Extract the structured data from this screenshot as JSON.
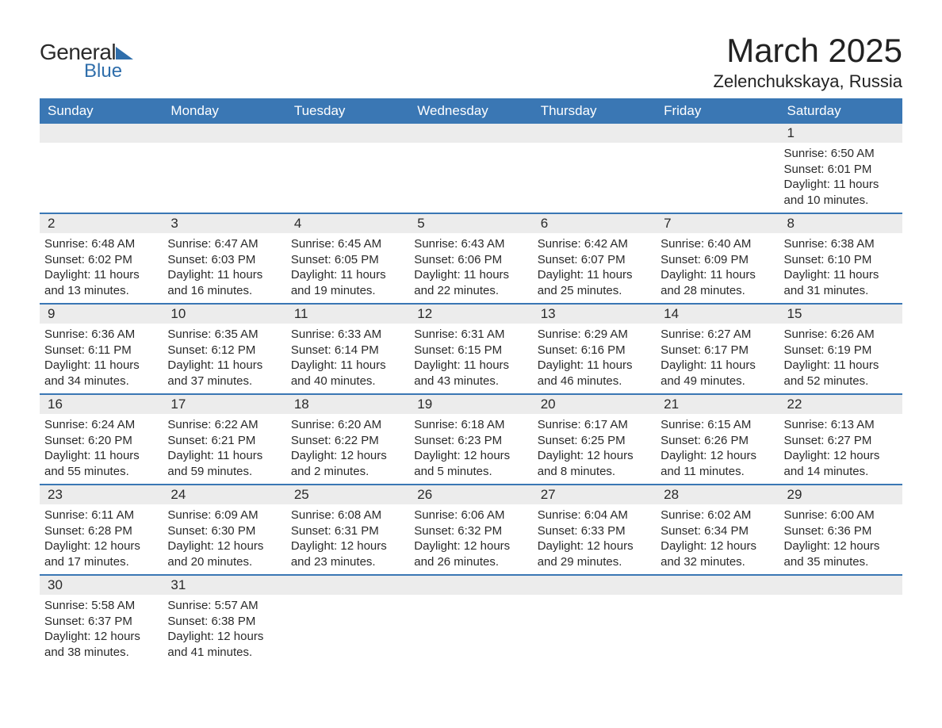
{
  "brand": {
    "general": "General",
    "blue": "Blue",
    "accent_color": "#2f6eab"
  },
  "title": "March 2025",
  "location": "Zelenchukskaya, Russia",
  "header_bg": "#3a77b4",
  "dayname_bg": "#ececec",
  "text_color": "#2a2a2a",
  "weekdays": [
    "Sunday",
    "Monday",
    "Tuesday",
    "Wednesday",
    "Thursday",
    "Friday",
    "Saturday"
  ],
  "weeks": [
    [
      null,
      null,
      null,
      null,
      null,
      null,
      {
        "n": "1",
        "sr": "6:50 AM",
        "ss": "6:01 PM",
        "dl": "11 hours and 10 minutes."
      }
    ],
    [
      {
        "n": "2",
        "sr": "6:48 AM",
        "ss": "6:02 PM",
        "dl": "11 hours and 13 minutes."
      },
      {
        "n": "3",
        "sr": "6:47 AM",
        "ss": "6:03 PM",
        "dl": "11 hours and 16 minutes."
      },
      {
        "n": "4",
        "sr": "6:45 AM",
        "ss": "6:05 PM",
        "dl": "11 hours and 19 minutes."
      },
      {
        "n": "5",
        "sr": "6:43 AM",
        "ss": "6:06 PM",
        "dl": "11 hours and 22 minutes."
      },
      {
        "n": "6",
        "sr": "6:42 AM",
        "ss": "6:07 PM",
        "dl": "11 hours and 25 minutes."
      },
      {
        "n": "7",
        "sr": "6:40 AM",
        "ss": "6:09 PM",
        "dl": "11 hours and 28 minutes."
      },
      {
        "n": "8",
        "sr": "6:38 AM",
        "ss": "6:10 PM",
        "dl": "11 hours and 31 minutes."
      }
    ],
    [
      {
        "n": "9",
        "sr": "6:36 AM",
        "ss": "6:11 PM",
        "dl": "11 hours and 34 minutes."
      },
      {
        "n": "10",
        "sr": "6:35 AM",
        "ss": "6:12 PM",
        "dl": "11 hours and 37 minutes."
      },
      {
        "n": "11",
        "sr": "6:33 AM",
        "ss": "6:14 PM",
        "dl": "11 hours and 40 minutes."
      },
      {
        "n": "12",
        "sr": "6:31 AM",
        "ss": "6:15 PM",
        "dl": "11 hours and 43 minutes."
      },
      {
        "n": "13",
        "sr": "6:29 AM",
        "ss": "6:16 PM",
        "dl": "11 hours and 46 minutes."
      },
      {
        "n": "14",
        "sr": "6:27 AM",
        "ss": "6:17 PM",
        "dl": "11 hours and 49 minutes."
      },
      {
        "n": "15",
        "sr": "6:26 AM",
        "ss": "6:19 PM",
        "dl": "11 hours and 52 minutes."
      }
    ],
    [
      {
        "n": "16",
        "sr": "6:24 AM",
        "ss": "6:20 PM",
        "dl": "11 hours and 55 minutes."
      },
      {
        "n": "17",
        "sr": "6:22 AM",
        "ss": "6:21 PM",
        "dl": "11 hours and 59 minutes."
      },
      {
        "n": "18",
        "sr": "6:20 AM",
        "ss": "6:22 PM",
        "dl": "12 hours and 2 minutes."
      },
      {
        "n": "19",
        "sr": "6:18 AM",
        "ss": "6:23 PM",
        "dl": "12 hours and 5 minutes."
      },
      {
        "n": "20",
        "sr": "6:17 AM",
        "ss": "6:25 PM",
        "dl": "12 hours and 8 minutes."
      },
      {
        "n": "21",
        "sr": "6:15 AM",
        "ss": "6:26 PM",
        "dl": "12 hours and 11 minutes."
      },
      {
        "n": "22",
        "sr": "6:13 AM",
        "ss": "6:27 PM",
        "dl": "12 hours and 14 minutes."
      }
    ],
    [
      {
        "n": "23",
        "sr": "6:11 AM",
        "ss": "6:28 PM",
        "dl": "12 hours and 17 minutes."
      },
      {
        "n": "24",
        "sr": "6:09 AM",
        "ss": "6:30 PM",
        "dl": "12 hours and 20 minutes."
      },
      {
        "n": "25",
        "sr": "6:08 AM",
        "ss": "6:31 PM",
        "dl": "12 hours and 23 minutes."
      },
      {
        "n": "26",
        "sr": "6:06 AM",
        "ss": "6:32 PM",
        "dl": "12 hours and 26 minutes."
      },
      {
        "n": "27",
        "sr": "6:04 AM",
        "ss": "6:33 PM",
        "dl": "12 hours and 29 minutes."
      },
      {
        "n": "28",
        "sr": "6:02 AM",
        "ss": "6:34 PM",
        "dl": "12 hours and 32 minutes."
      },
      {
        "n": "29",
        "sr": "6:00 AM",
        "ss": "6:36 PM",
        "dl": "12 hours and 35 minutes."
      }
    ],
    [
      {
        "n": "30",
        "sr": "5:58 AM",
        "ss": "6:37 PM",
        "dl": "12 hours and 38 minutes."
      },
      {
        "n": "31",
        "sr": "5:57 AM",
        "ss": "6:38 PM",
        "dl": "12 hours and 41 minutes."
      },
      null,
      null,
      null,
      null,
      null
    ]
  ],
  "labels": {
    "sunrise": "Sunrise:",
    "sunset": "Sunset:",
    "daylight": "Daylight:"
  }
}
